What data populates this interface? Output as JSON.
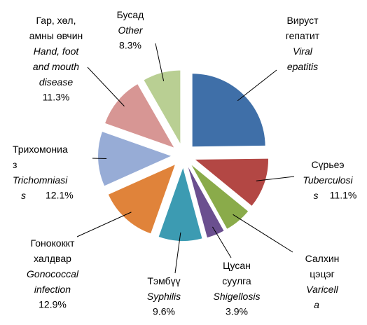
{
  "chart_data": {
    "type": "pie",
    "categories": [
      "Вируст\nгепатит",
      "Сүрьеэ",
      "Салхин\nцэцэг",
      "Цусан\nсуулга",
      "Тэмбүү",
      "Гонококкт\nхалдвар",
      "Трихомониа\nз",
      "Гар, хөл,\nамны өвчин",
      "Бусад"
    ],
    "english": [
      "Viral\nepatitis",
      "Tuberculosi\ns",
      "Varicell\na",
      "Shigellosis",
      "Syphilis",
      "Gonococcal\ninfection",
      "Trichomniasi\ns",
      "Hand, foot\nand mouth\ndisease",
      "Other"
    ],
    "values": [
      24.8,
      11.1,
      6.0,
      3.9,
      9.6,
      12.9,
      12.1,
      11.3,
      8.3
    ],
    "value_labels": [
      null,
      "11.1%",
      null,
      "3.9%",
      "9.6%",
      "12.9%",
      "12.1%",
      "11.3%",
      "8.3%"
    ],
    "colors": [
      "#3f6fa8",
      "#b34744",
      "#8aab4a",
      "#6b4f8f",
      "#3c9bb2",
      "#e0833a",
      "#97acd6",
      "#d79694",
      "#b9cf93"
    ]
  }
}
